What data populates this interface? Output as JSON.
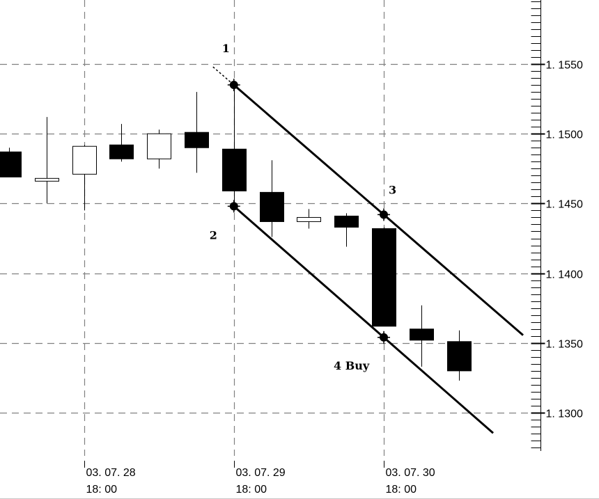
{
  "chart_data": {
    "type": "candlestick",
    "y_ticks": [
      "1. 1300",
      "1. 1350",
      "1. 1400",
      "1. 1450",
      "1. 1500",
      "1. 1550"
    ],
    "y_tick_values": [
      1.13,
      1.135,
      1.14,
      1.145,
      1.15,
      1.155
    ],
    "ylim": [
      1.1275,
      1.1595
    ],
    "grid": true,
    "x_ticks": [
      {
        "date": "03. 07. 28",
        "time": "18: 00",
        "candle_index": 2
      },
      {
        "date": "03. 07. 29",
        "time": "18: 00",
        "candle_index": 6
      },
      {
        "date": "03. 07. 30",
        "time": "18: 00",
        "candle_index": 10
      }
    ],
    "candles": [
      {
        "open": 1.1487,
        "high": 1.149,
        "low": 1.1469,
        "close": 1.1469
      },
      {
        "open": 1.1466,
        "high": 1.1512,
        "low": 1.145,
        "close": 1.1468
      },
      {
        "open": 1.1471,
        "high": 1.1492,
        "low": 1.1445,
        "close": 1.1491
      },
      {
        "open": 1.1492,
        "high": 1.1507,
        "low": 1.148,
        "close": 1.1482
      },
      {
        "open": 1.1482,
        "high": 1.1503,
        "low": 1.1475,
        "close": 1.15
      },
      {
        "open": 1.1501,
        "high": 1.153,
        "low": 1.1472,
        "close": 1.149
      },
      {
        "open": 1.1489,
        "high": 1.1535,
        "low": 1.1445,
        "close": 1.1459
      },
      {
        "open": 1.1458,
        "high": 1.1481,
        "low": 1.1426,
        "close": 1.1437
      },
      {
        "open": 1.1437,
        "high": 1.1446,
        "low": 1.1432,
        "close": 1.144
      },
      {
        "open": 1.1441,
        "high": 1.1443,
        "low": 1.1419,
        "close": 1.1433
      },
      {
        "open": 1.1432,
        "high": 1.1433,
        "low": 1.1362,
        "close": 1.1362
      },
      {
        "open": 1.136,
        "high": 1.1377,
        "low": 1.1333,
        "close": 1.1352
      },
      {
        "open": 1.1351,
        "high": 1.1359,
        "low": 1.1323,
        "close": 1.133
      }
    ],
    "channel": {
      "upper": [
        {
          "candle_index": 6,
          "y": 1.1535
        },
        {
          "candle_index": 10,
          "y": 1.1442
        }
      ],
      "lower": [
        {
          "candle_index": 6,
          "y": 1.1448
        },
        {
          "candle_index": 10,
          "y": 1.1354
        }
      ]
    },
    "annotations": [
      {
        "text": "1",
        "candle_index": 6,
        "anchor": "upper-start"
      },
      {
        "text": "2",
        "candle_index": 6,
        "anchor": "lower-start"
      },
      {
        "text": "3",
        "candle_index": 10,
        "anchor": "upper-end"
      },
      {
        "text": "4 Buy",
        "candle_index": 10,
        "anchor": "lower-end"
      }
    ]
  }
}
